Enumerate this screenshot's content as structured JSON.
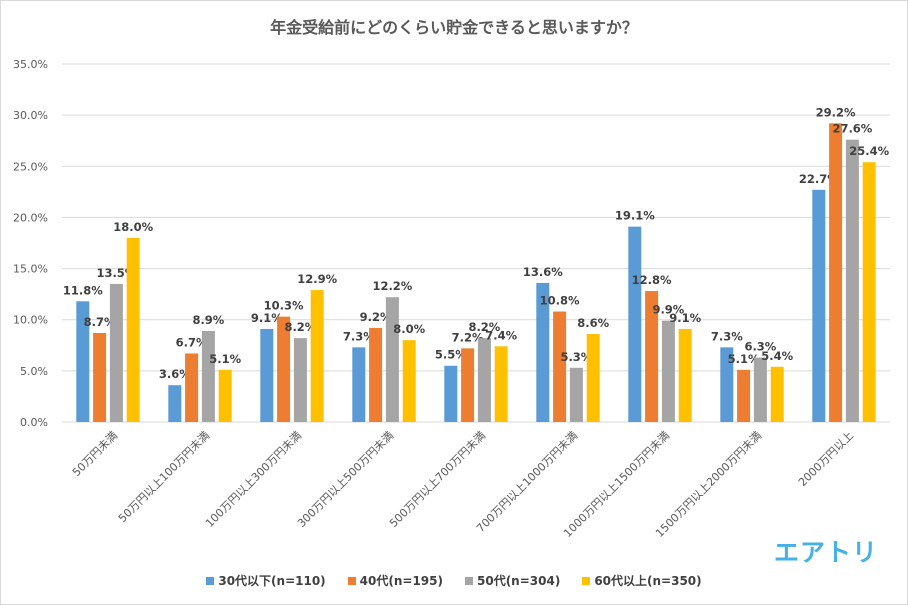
{
  "chart_data": {
    "type": "bar",
    "title": "年金受給前にどのくらい貯金できると思いますか？",
    "categories": [
      "50万円未満",
      "50万円以上100万円未満",
      "100万円以上300万円未満",
      "300万円以上500万円未満",
      "500万円以上700万円未満",
      "700万円以上1000万円未満",
      "1000万円以上1500万円未満",
      "1500万円以上2000万円未満",
      "2000万円以上"
    ],
    "series": [
      {
        "name": "30代以下(n=110)",
        "color": "#5b9bd5",
        "values": [
          11.8,
          3.6,
          9.1,
          7.3,
          5.5,
          13.6,
          19.1,
          7.3,
          22.7
        ]
      },
      {
        "name": "40代(n=195)",
        "color": "#ed7d31",
        "values": [
          8.7,
          6.7,
          10.3,
          9.2,
          7.2,
          10.8,
          12.8,
          5.1,
          29.2
        ]
      },
      {
        "name": "50代(n=304)",
        "color": "#a5a5a5",
        "values": [
          13.5,
          8.9,
          8.2,
          12.2,
          8.2,
          5.3,
          9.9,
          6.3,
          27.6
        ]
      },
      {
        "name": "60代以上(n=350)",
        "color": "#ffc000",
        "values": [
          18.0,
          5.1,
          12.9,
          8.0,
          7.4,
          8.6,
          9.1,
          5.4,
          25.4
        ]
      }
    ],
    "ylim": [
      0,
      35
    ],
    "yticks": [
      0,
      5,
      10,
      15,
      20,
      25,
      30,
      35
    ],
    "ytick_labels": [
      "0.0%",
      "5.0%",
      "10.0%",
      "15.0%",
      "20.0%",
      "25.0%",
      "30.0%",
      "35.0%"
    ],
    "value_suffix": "%",
    "grid": true,
    "legend_position": "bottom"
  },
  "brand": {
    "text": "エアトリ",
    "color": "#45b1e6"
  }
}
